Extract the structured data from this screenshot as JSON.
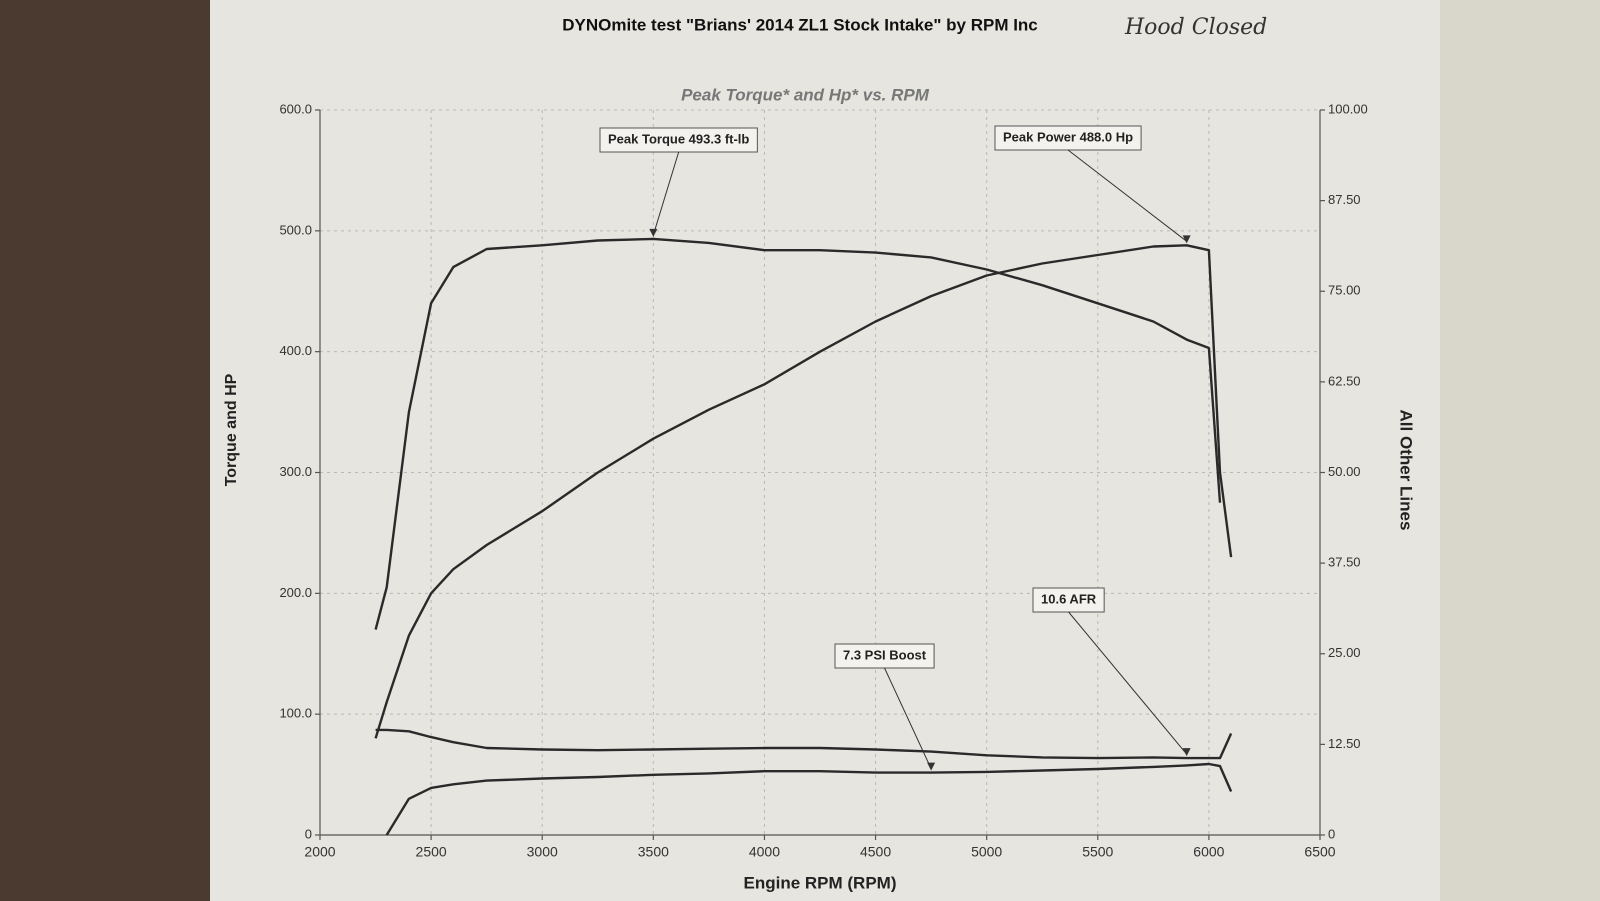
{
  "chart_data": {
    "type": "line",
    "title": "DYNOmite test \"Brians' 2014 ZL1 Stock Intake\" by RPM Inc",
    "handwritten_note": "Hood Closed",
    "subtitle": "Peak Torque* and Hp* vs. RPM",
    "x_label": "Engine RPM (RPM)",
    "y_label": "Torque and HP",
    "y2_label": "All Other Lines",
    "annotations": [
      "Peak Torque 493.3 ft-lb",
      "Peak Power 488.0 Hp",
      "7.3 PSI Boost",
      "10.6 AFR"
    ],
    "x": [
      2250,
      2300,
      2400,
      2500,
      2600,
      2750,
      3000,
      3250,
      3500,
      3750,
      4000,
      4250,
      4500,
      4750,
      5000,
      5250,
      5500,
      5750,
      5900,
      6000,
      6050,
      6100
    ],
    "series": [
      {
        "color": "#2a2a2a",
        "values": [
          170,
          205,
          350,
          440,
          470,
          485,
          488,
          492,
          493.3,
          490,
          484,
          484,
          482,
          478,
          468,
          455,
          440,
          425,
          410,
          403,
          275,
          null
        ]
      },
      {
        "color": "#2a2a2a",
        "values": [
          80,
          110,
          165,
          200,
          220,
          240,
          268,
          300,
          328,
          352,
          373,
          400,
          425,
          446,
          463,
          473,
          480,
          487,
          488,
          484,
          300,
          230
        ]
      },
      {
        "color": "#2a2a2a",
        "axis": "y2",
        "values": [
          null,
          0,
          5,
          6.5,
          7,
          7.5,
          7.8,
          8,
          8.3,
          8.5,
          8.8,
          8.8,
          8.6,
          8.6,
          8.7,
          8.9,
          9.1,
          9.4,
          9.6,
          9.8,
          9.5,
          6
        ]
      },
      {
        "color": "#2a2a2a",
        "axis": "y2",
        "values": [
          14.5,
          14.5,
          14.3,
          13.5,
          12.8,
          12,
          11.8,
          11.7,
          11.8,
          11.9,
          12,
          12,
          11.8,
          11.5,
          11,
          10.7,
          10.6,
          10.7,
          10.6,
          10.6,
          10.6,
          14
        ]
      }
    ],
    "xlim": [
      2000,
      6500
    ],
    "xticks": [
      2000,
      2500,
      3000,
      3500,
      4000,
      4500,
      5000,
      5500,
      6000,
      6500
    ],
    "ylim": [
      0,
      600
    ],
    "yticks": [
      0,
      {
        "value": 100,
        "label": "100.0"
      },
      {
        "value": 200,
        "label": "200.0"
      },
      {
        "value": 300,
        "label": "300.0"
      },
      {
        "value": 400,
        "label": "400.0"
      },
      {
        "value": 500,
        "label": "500.0"
      },
      {
        "value": 600,
        "label": "600.0"
      }
    ],
    "y2lim": [
      0,
      100
    ],
    "y2ticks": [
      0,
      {
        "value": 12.5,
        "label": "12.50"
      },
      {
        "value": 25,
        "label": "25.00"
      },
      {
        "value": 37.5,
        "label": "37.50"
      },
      {
        "value": 50,
        "label": "50.00"
      },
      {
        "value": 62.5,
        "label": "62.50"
      },
      {
        "value": 75,
        "label": "75.00"
      },
      {
        "value": 87.5,
        "label": "87.50"
      },
      {
        "value": 100,
        "label": "100.00"
      }
    ],
    "grid": true
  }
}
